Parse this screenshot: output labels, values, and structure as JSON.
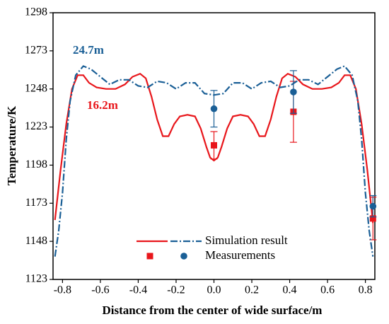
{
  "chart_data": {
    "type": "line",
    "x_label": "Distance from the center of wide surface/m",
    "y_label": "Temperature/K",
    "xlim": [
      -0.85,
      0.85
    ],
    "ylim": [
      1123,
      1298
    ],
    "xticks": [
      -0.8,
      -0.6,
      -0.4,
      -0.2,
      {
        "value": 0,
        "label": "0.0"
      },
      0.2,
      0.4,
      0.6,
      0.8
    ],
    "yticks": [
      1123,
      1148,
      1173,
      1198,
      1223,
      1248,
      1273,
      1298
    ],
    "legend": [
      "Simulation result",
      "Measurements"
    ],
    "series": [
      {
        "name": "16.2m",
        "color": "#e8161b",
        "style": "solid",
        "x": [
          -0.84,
          -0.81,
          -0.78,
          -0.75,
          -0.72,
          -0.69,
          -0.66,
          -0.62,
          -0.57,
          -0.52,
          -0.47,
          -0.43,
          -0.39,
          -0.36,
          -0.33,
          -0.3,
          -0.27,
          -0.24,
          -0.21,
          -0.18,
          -0.14,
          -0.1,
          -0.07,
          -0.04,
          -0.02,
          0,
          0.02,
          0.04,
          0.07,
          0.1,
          0.14,
          0.18,
          0.21,
          0.24,
          0.27,
          0.3,
          0.33,
          0.36,
          0.39,
          0.43,
          0.47,
          0.52,
          0.57,
          0.62,
          0.66,
          0.69,
          0.72,
          0.75,
          0.78,
          0.81,
          0.84
        ],
        "values": [
          1162,
          1195,
          1225,
          1248,
          1257,
          1257,
          1252,
          1249,
          1248,
          1248,
          1251,
          1256,
          1258,
          1255,
          1243,
          1228,
          1217,
          1217,
          1225,
          1230,
          1231,
          1230,
          1222,
          1210,
          1203,
          1201,
          1203,
          1210,
          1222,
          1230,
          1231,
          1230,
          1225,
          1217,
          1217,
          1228,
          1243,
          1255,
          1258,
          1256,
          1251,
          1248,
          1248,
          1249,
          1252,
          1257,
          1257,
          1248,
          1225,
          1195,
          1160
        ],
        "measurements": {
          "x": [
            0,
            0.42,
            0.84
          ],
          "values": [
            1211,
            1233,
            1163
          ],
          "errors": [
            9,
            20,
            14
          ],
          "marker": "square"
        }
      },
      {
        "name": "24.7m",
        "color": "#1a5f96",
        "style": "dashdot",
        "x": [
          -0.84,
          -0.82,
          -0.8,
          -0.78,
          -0.76,
          -0.73,
          -0.69,
          -0.65,
          -0.6,
          -0.55,
          -0.5,
          -0.45,
          -0.4,
          -0.35,
          -0.3,
          -0.25,
          -0.2,
          -0.15,
          -0.1,
          -0.05,
          0,
          0.05,
          0.1,
          0.15,
          0.2,
          0.25,
          0.3,
          0.35,
          0.4,
          0.45,
          0.5,
          0.55,
          0.6,
          0.65,
          0.69,
          0.73,
          0.76,
          0.78,
          0.8,
          0.82,
          0.84
        ],
        "values": [
          1138,
          1155,
          1180,
          1215,
          1240,
          1257,
          1263,
          1261,
          1256,
          1251,
          1254,
          1254,
          1250,
          1249,
          1253,
          1252,
          1248,
          1252,
          1252,
          1245,
          1244,
          1245,
          1252,
          1252,
          1248,
          1252,
          1253,
          1249,
          1250,
          1254,
          1254,
          1251,
          1256,
          1261,
          1263,
          1257,
          1240,
          1215,
          1180,
          1155,
          1138
        ],
        "measurements": {
          "x": [
            0,
            0.42,
            0.84
          ],
          "values": [
            1235,
            1246,
            1171
          ],
          "errors": [
            12,
            14,
            7
          ],
          "marker": "circle"
        }
      }
    ]
  }
}
